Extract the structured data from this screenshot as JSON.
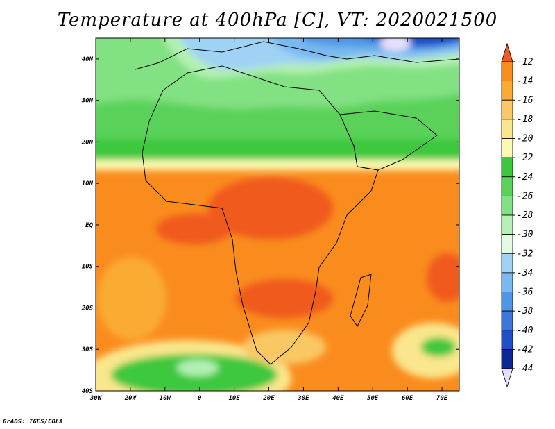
{
  "title": "Temperature at 400hPa [C], VT: 2020021500",
  "credit": "GrADS: IGES/COLA",
  "map": {
    "lon_range": [
      -30,
      75
    ],
    "lat_range": [
      -40,
      45
    ],
    "lat_ticks": [
      {
        "value": 40,
        "label": "40N"
      },
      {
        "value": 30,
        "label": "30N"
      },
      {
        "value": 20,
        "label": "20N"
      },
      {
        "value": 10,
        "label": "10N"
      },
      {
        "value": 0,
        "label": "EQ"
      },
      {
        "value": -10,
        "label": "10S"
      },
      {
        "value": -20,
        "label": "20S"
      },
      {
        "value": -30,
        "label": "30S"
      },
      {
        "value": -40,
        "label": "40S"
      }
    ],
    "lon_ticks": [
      {
        "value": -30,
        "label": "30W"
      },
      {
        "value": -20,
        "label": "20W"
      },
      {
        "value": -10,
        "label": "10W"
      },
      {
        "value": 0,
        "label": "0"
      },
      {
        "value": 10,
        "label": "10E"
      },
      {
        "value": 20,
        "label": "20E"
      },
      {
        "value": 30,
        "label": "30E"
      },
      {
        "value": 40,
        "label": "40E"
      },
      {
        "value": 50,
        "label": "50E"
      },
      {
        "value": 60,
        "label": "60E"
      },
      {
        "value": 70,
        "label": "70E"
      }
    ]
  },
  "colorbar": {
    "levels": [
      "-12",
      "-14",
      "-16",
      "-18",
      "-20",
      "-22",
      "-24",
      "-26",
      "-28",
      "-30",
      "-32",
      "-34",
      "-36",
      "-38",
      "-40",
      "-42",
      "-44"
    ],
    "colors": [
      "#f05a1e",
      "#fa8c1e",
      "#faab32",
      "#fac864",
      "#fae68c",
      "#fafab4",
      "#3cc83c",
      "#5ad25a",
      "#82e182",
      "#b4f0b4",
      "#e1fae1",
      "#a0d2f5",
      "#78b9f0",
      "#5096e6",
      "#3c78dc",
      "#1e50c8",
      "#0a2896",
      "#e6e0fa"
    ]
  }
}
